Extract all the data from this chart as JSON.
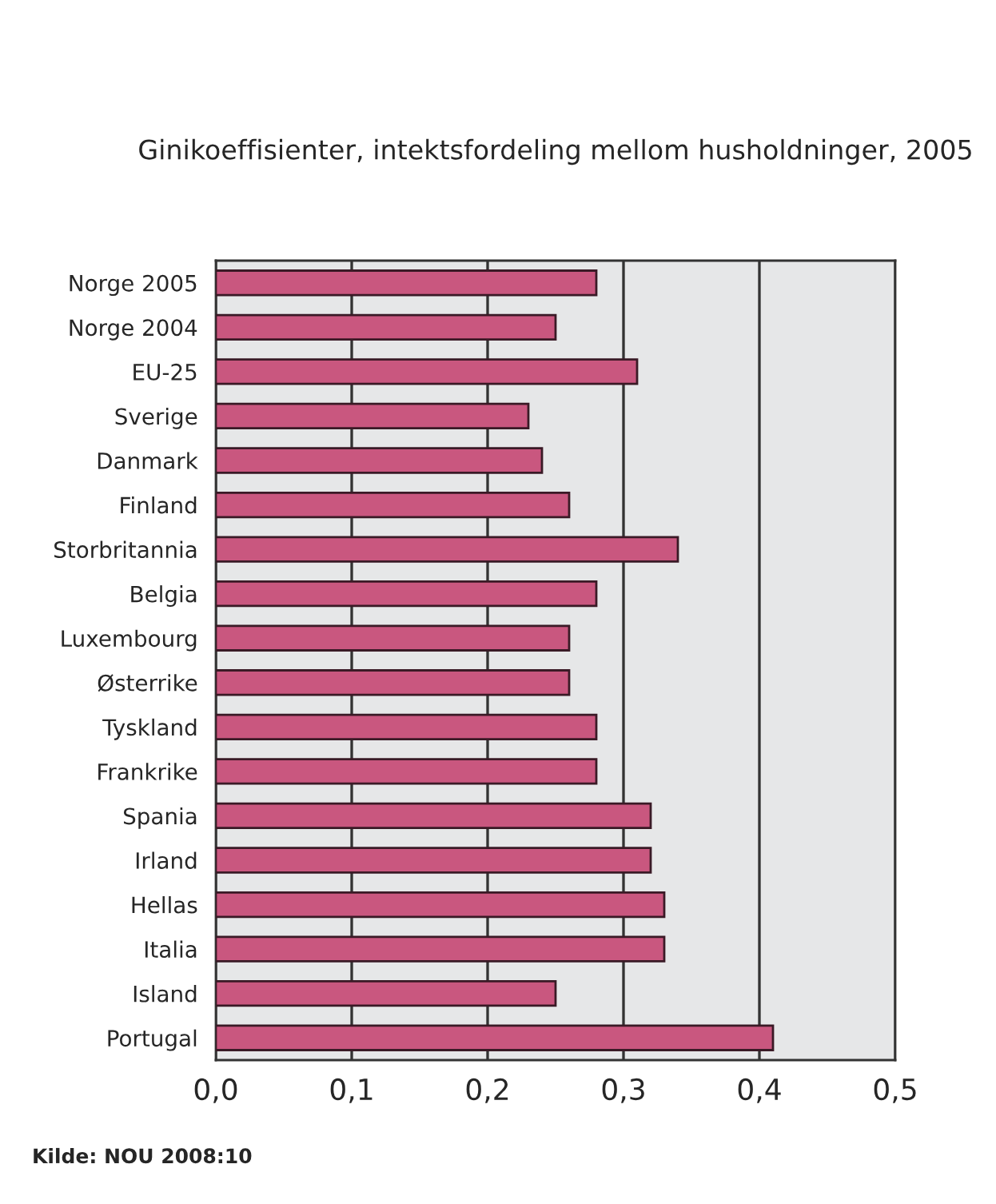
{
  "chart_data": {
    "type": "bar",
    "orientation": "horizontal",
    "title": "Ginikoeffisienter, intektsfordeling mellom husholdninger, 2005",
    "categories": [
      "Norge 2005",
      "Norge 2004",
      "EU-25",
      "Sverige",
      "Danmark",
      "Finland",
      "Storbritannia",
      "Belgia",
      "Luxembourg",
      "Østerrike",
      "Tyskland",
      "Frankrike",
      "Spania",
      "Irland",
      "Hellas",
      "Italia",
      "Island",
      "Portugal"
    ],
    "values": [
      0.28,
      0.25,
      0.31,
      0.23,
      0.24,
      0.26,
      0.34,
      0.28,
      0.26,
      0.26,
      0.28,
      0.28,
      0.32,
      0.32,
      0.33,
      0.33,
      0.25,
      0.41
    ],
    "color": "#c9577f",
    "xlim": [
      0,
      0.5
    ],
    "xticks": [
      {
        "value": 0,
        "label": "0,0"
      },
      {
        "value": 0.1,
        "label": "0,1"
      },
      {
        "value": 0.2,
        "label": "0,2"
      },
      {
        "value": 0.3,
        "label": "0,3"
      },
      {
        "value": 0.4,
        "label": "0,4"
      },
      {
        "value": 0.5,
        "label": "0,5"
      }
    ],
    "grid": "x",
    "annotations": [
      "Kilde: NOU 2008:10"
    ]
  }
}
